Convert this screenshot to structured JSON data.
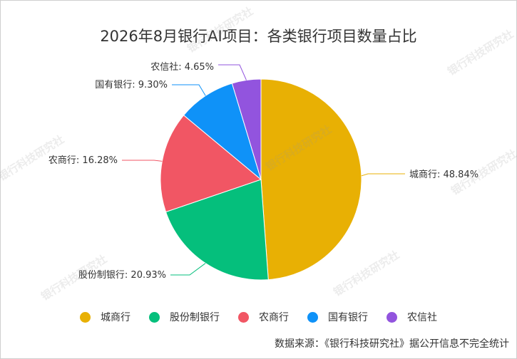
{
  "title": "2026年8月银行AI项目：各类银行项目数量占比",
  "source_note": "数据来源：《银行科技研究社》据公开信息不完全统计",
  "watermark_text": "银行科技研究社",
  "chart_data": {
    "type": "pie",
    "title": "2026年8月银行AI项目：各类银行项目数量占比",
    "categories": [
      "城商行",
      "股份制银行",
      "农商行",
      "国有银行",
      "农信社"
    ],
    "values": [
      48.84,
      20.93,
      16.28,
      9.3,
      4.65
    ],
    "labels": [
      "城商行: 48.84%",
      "股份制银行: 20.93%",
      "农商行: 16.28%",
      "国有银行: 9.30%",
      "农信社: 4.65%"
    ],
    "colors": [
      "#E8B004",
      "#05BF7C",
      "#F15664",
      "#0F92F8",
      "#9254DE"
    ],
    "legend_position": "bottom"
  }
}
